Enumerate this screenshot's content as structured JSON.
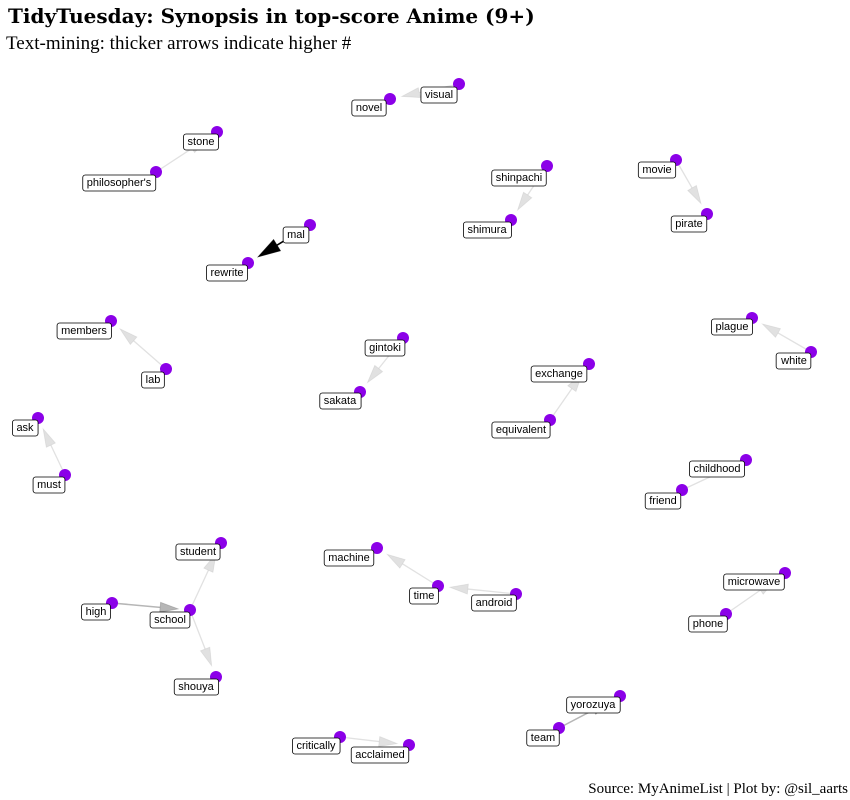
{
  "title": "TidyTuesday: Synopsis in top-score Anime (9+)",
  "subtitle": "Text-mining: thicker arrows indicate higher #",
  "caption": "Source: MyAnimeList | Plot by: @sil_aarts",
  "colors": {
    "node": "#8b00e8",
    "label_border": "#000000",
    "edge_light": "#bdbdbd",
    "edge_dark": "#000000"
  },
  "nodes": [
    {
      "id": "visual",
      "label": "visual"
    },
    {
      "id": "novel",
      "label": "novel"
    },
    {
      "id": "stone",
      "label": "stone"
    },
    {
      "id": "philosophers",
      "label": "philosopher's"
    },
    {
      "id": "shinpachi",
      "label": "shinpachi"
    },
    {
      "id": "shimura",
      "label": "shimura"
    },
    {
      "id": "movie",
      "label": "movie"
    },
    {
      "id": "pirate",
      "label": "pirate"
    },
    {
      "id": "mal",
      "label": "mal"
    },
    {
      "id": "rewrite",
      "label": "rewrite"
    },
    {
      "id": "members",
      "label": "members"
    },
    {
      "id": "lab",
      "label": "lab"
    },
    {
      "id": "gintoki",
      "label": "gintoki"
    },
    {
      "id": "sakata",
      "label": "sakata"
    },
    {
      "id": "plague",
      "label": "plague"
    },
    {
      "id": "white",
      "label": "white"
    },
    {
      "id": "exchange",
      "label": "exchange"
    },
    {
      "id": "equivalent",
      "label": "equivalent"
    },
    {
      "id": "ask",
      "label": "ask"
    },
    {
      "id": "must",
      "label": "must"
    },
    {
      "id": "childhood",
      "label": "childhood"
    },
    {
      "id": "friend",
      "label": "friend"
    },
    {
      "id": "student",
      "label": "student"
    },
    {
      "id": "high",
      "label": "high"
    },
    {
      "id": "school",
      "label": "school"
    },
    {
      "id": "shouya",
      "label": "shouya"
    },
    {
      "id": "machine",
      "label": "machine"
    },
    {
      "id": "time",
      "label": "time"
    },
    {
      "id": "android",
      "label": "android"
    },
    {
      "id": "microwave",
      "label": "microwave"
    },
    {
      "id": "phone",
      "label": "phone"
    },
    {
      "id": "yorozuya",
      "label": "yorozuya"
    },
    {
      "id": "team",
      "label": "team"
    },
    {
      "id": "critically",
      "label": "critically"
    },
    {
      "id": "acclaimed",
      "label": "acclaimed"
    }
  ],
  "edges": [
    {
      "from": "visual",
      "to": "novel",
      "weight": 1
    },
    {
      "from": "philosophers",
      "to": "stone",
      "weight": 1
    },
    {
      "from": "shinpachi",
      "to": "shimura",
      "weight": 1
    },
    {
      "from": "movie",
      "to": "pirate",
      "weight": 1
    },
    {
      "from": "mal",
      "to": "rewrite",
      "weight": 4
    },
    {
      "from": "lab",
      "to": "members",
      "weight": 1
    },
    {
      "from": "gintoki",
      "to": "sakata",
      "weight": 1
    },
    {
      "from": "white",
      "to": "plague",
      "weight": 1
    },
    {
      "from": "equivalent",
      "to": "exchange",
      "weight": 1
    },
    {
      "from": "must",
      "to": "ask",
      "weight": 1
    },
    {
      "from": "friend",
      "to": "childhood",
      "weight": 1
    },
    {
      "from": "school",
      "to": "student",
      "weight": 1
    },
    {
      "from": "high",
      "to": "school",
      "weight": 2
    },
    {
      "from": "school",
      "to": "shouya",
      "weight": 1
    },
    {
      "from": "time",
      "to": "machine",
      "weight": 1
    },
    {
      "from": "android",
      "to": "time",
      "weight": 1
    },
    {
      "from": "phone",
      "to": "microwave",
      "weight": 1
    },
    {
      "from": "team",
      "to": "yorozuya",
      "weight": 2
    },
    {
      "from": "critically",
      "to": "acclaimed",
      "weight": 1
    }
  ]
}
